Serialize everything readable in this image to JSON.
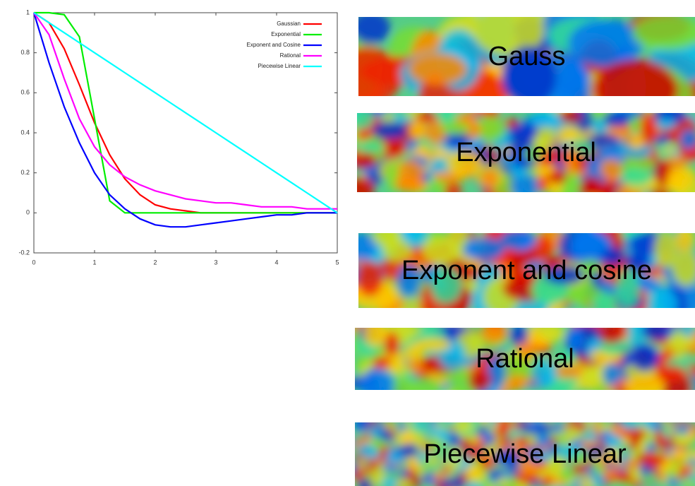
{
  "chart_data": {
    "type": "line",
    "x": [
      0,
      0.25,
      0.5,
      0.75,
      1,
      1.25,
      1.5,
      1.75,
      2,
      2.25,
      2.5,
      2.75,
      3,
      3.25,
      3.5,
      3.75,
      4,
      4.25,
      4.5,
      4.75,
      5
    ],
    "series": [
      {
        "name": "Gaussian",
        "color": "#ff0000",
        "values": [
          1,
          0.95,
          0.82,
          0.64,
          0.45,
          0.29,
          0.17,
          0.09,
          0.04,
          0.02,
          0.01,
          0,
          0,
          0,
          0,
          0,
          0,
          0,
          0,
          0,
          0
        ]
      },
      {
        "name": "Exponential",
        "color": "#00ee00",
        "values": [
          1,
          1,
          0.99,
          0.88,
          0.47,
          0.06,
          0,
          0,
          0,
          0,
          0,
          0,
          0,
          0,
          0,
          0,
          0,
          0,
          0,
          0,
          0
        ]
      },
      {
        "name": "Exponent and Cosine",
        "color": "#0000ff",
        "values": [
          1,
          0.75,
          0.53,
          0.35,
          0.2,
          0.09,
          0.02,
          -0.03,
          -0.06,
          -0.07,
          -0.07,
          -0.06,
          -0.05,
          -0.04,
          -0.03,
          -0.02,
          -0.01,
          -0.01,
          0,
          0,
          0
        ]
      },
      {
        "name": "Rational",
        "color": "#ff00ff",
        "values": [
          1,
          0.89,
          0.67,
          0.47,
          0.33,
          0.24,
          0.18,
          0.14,
          0.11,
          0.09,
          0.07,
          0.06,
          0.05,
          0.05,
          0.04,
          0.03,
          0.03,
          0.03,
          0.02,
          0.02,
          0.02
        ]
      },
      {
        "name": "Piecewise Linear",
        "color": "#00ffff",
        "values": [
          1,
          0.95,
          0.9,
          0.85,
          0.8,
          0.75,
          0.7,
          0.65,
          0.6,
          0.55,
          0.5,
          0.45,
          0.4,
          0.35,
          0.3,
          0.25,
          0.2,
          0.15,
          0.1,
          0.05,
          0
        ]
      }
    ],
    "xlim": [
      0,
      5
    ],
    "xticks": [
      0,
      1,
      2,
      3,
      4,
      5
    ],
    "ylim": [
      -0.2,
      1
    ],
    "yticks": [
      -0.2,
      0,
      0.2,
      0.4,
      0.6,
      0.8,
      1
    ],
    "legend": "upper-right"
  },
  "panels": [
    {
      "label": "Gauss"
    },
    {
      "label": "Exponential"
    },
    {
      "label": "Exponent and cosine"
    },
    {
      "label": "Rational"
    },
    {
      "label": "Piecewise Linear"
    }
  ]
}
